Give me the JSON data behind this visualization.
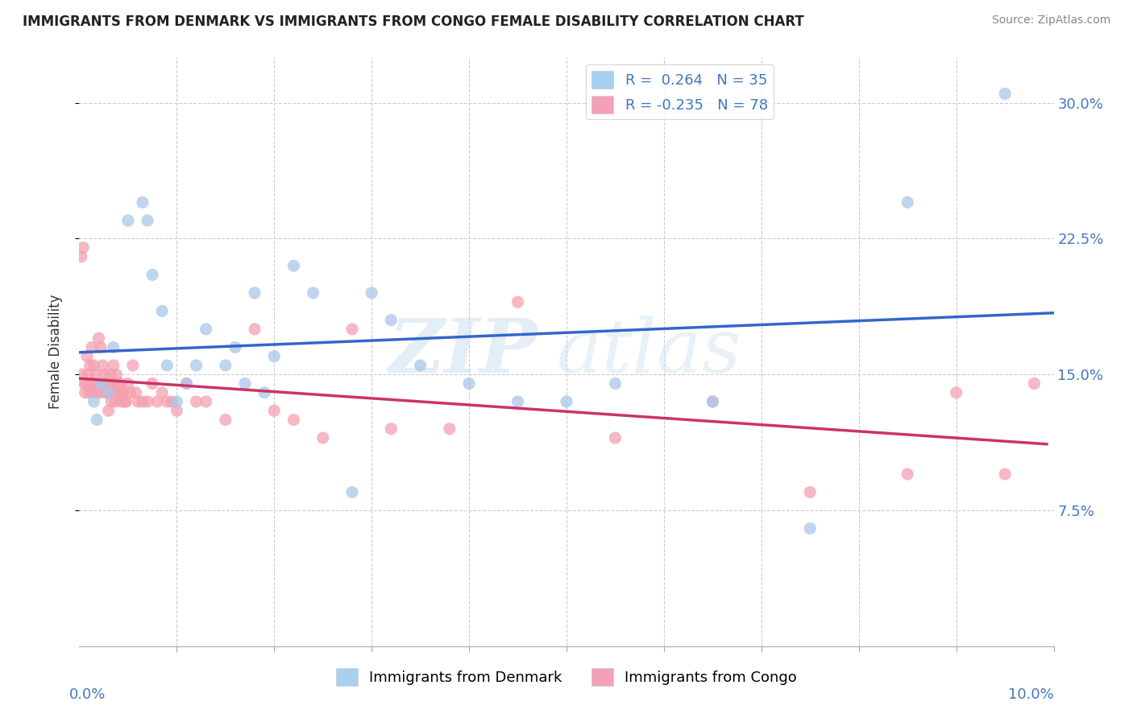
{
  "title": "IMMIGRANTS FROM DENMARK VS IMMIGRANTS FROM CONGO FEMALE DISABILITY CORRELATION CHART",
  "source": "Source: ZipAtlas.com",
  "ylabel": "Female Disability",
  "xmin": 0.0,
  "xmax": 10.0,
  "ymin": 0.0,
  "ymax": 32.5,
  "yticks": [
    7.5,
    15.0,
    22.5,
    30.0
  ],
  "xticks_minor": [
    1.0,
    2.0,
    3.0,
    4.0,
    5.0,
    6.0,
    7.0,
    8.0,
    9.0,
    10.0
  ],
  "watermark_zip": "ZIP",
  "watermark_atlas": "atlas",
  "legend_label1": "R =  0.264   N = 35",
  "legend_label2": "R = -0.235   N = 78",
  "blue_scatter": "#a8c8e8",
  "pink_scatter": "#f4a0b0",
  "blue_line": "#3366cc",
  "pink_line": "#cc3366",
  "denmark_x": [
    0.15,
    0.18,
    0.22,
    0.3,
    0.35,
    0.5,
    0.65,
    0.7,
    0.75,
    0.85,
    0.9,
    1.0,
    1.1,
    1.2,
    1.3,
    1.5,
    1.6,
    1.7,
    1.8,
    1.9,
    2.0,
    2.2,
    2.4,
    2.8,
    3.0,
    3.2,
    3.5,
    4.0,
    4.5,
    5.0,
    5.5,
    6.5,
    7.5,
    8.5,
    9.5
  ],
  "denmark_y": [
    13.5,
    12.5,
    14.5,
    14.0,
    16.5,
    23.5,
    24.5,
    23.5,
    20.5,
    18.5,
    15.5,
    13.5,
    14.5,
    15.5,
    17.5,
    15.5,
    16.5,
    14.5,
    19.5,
    14.0,
    16.0,
    21.0,
    19.5,
    8.5,
    19.5,
    18.0,
    15.5,
    14.5,
    13.5,
    13.5,
    14.5,
    13.5,
    6.5,
    24.5,
    30.5
  ],
  "congo_x": [
    0.02,
    0.03,
    0.04,
    0.05,
    0.06,
    0.07,
    0.08,
    0.09,
    0.1,
    0.11,
    0.12,
    0.13,
    0.14,
    0.15,
    0.16,
    0.17,
    0.18,
    0.19,
    0.2,
    0.21,
    0.22,
    0.23,
    0.24,
    0.25,
    0.26,
    0.27,
    0.28,
    0.29,
    0.3,
    0.31,
    0.32,
    0.33,
    0.34,
    0.35,
    0.36,
    0.37,
    0.38,
    0.39,
    0.4,
    0.41,
    0.42,
    0.43,
    0.45,
    0.47,
    0.5,
    0.52,
    0.55,
    0.58,
    0.6,
    0.65,
    0.7,
    0.75,
    0.8,
    0.85,
    0.9,
    0.95,
    1.0,
    1.1,
    1.2,
    1.3,
    1.5,
    1.8,
    2.0,
    2.2,
    2.5,
    2.8,
    3.2,
    3.8,
    4.5,
    5.5,
    6.5,
    7.5,
    8.5,
    9.0,
    9.5,
    9.8,
    0.45,
    0.48
  ],
  "congo_y": [
    21.5,
    15.0,
    22.0,
    14.5,
    14.0,
    14.5,
    16.0,
    15.0,
    14.0,
    15.5,
    14.5,
    16.5,
    14.0,
    15.5,
    14.5,
    15.0,
    14.0,
    14.5,
    17.0,
    14.0,
    16.5,
    14.5,
    15.5,
    14.5,
    15.0,
    14.0,
    14.5,
    14.0,
    13.0,
    14.5,
    15.0,
    13.5,
    14.5,
    15.5,
    14.0,
    13.5,
    15.0,
    14.0,
    14.5,
    14.0,
    14.5,
    13.5,
    14.0,
    13.5,
    14.5,
    14.0,
    15.5,
    14.0,
    13.5,
    13.5,
    13.5,
    14.5,
    13.5,
    14.0,
    13.5,
    13.5,
    13.0,
    14.5,
    13.5,
    13.5,
    12.5,
    17.5,
    13.0,
    12.5,
    11.5,
    17.5,
    12.0,
    12.0,
    19.0,
    11.5,
    13.5,
    8.5,
    9.5,
    14.0,
    9.5,
    14.5,
    14.0,
    13.5
  ]
}
